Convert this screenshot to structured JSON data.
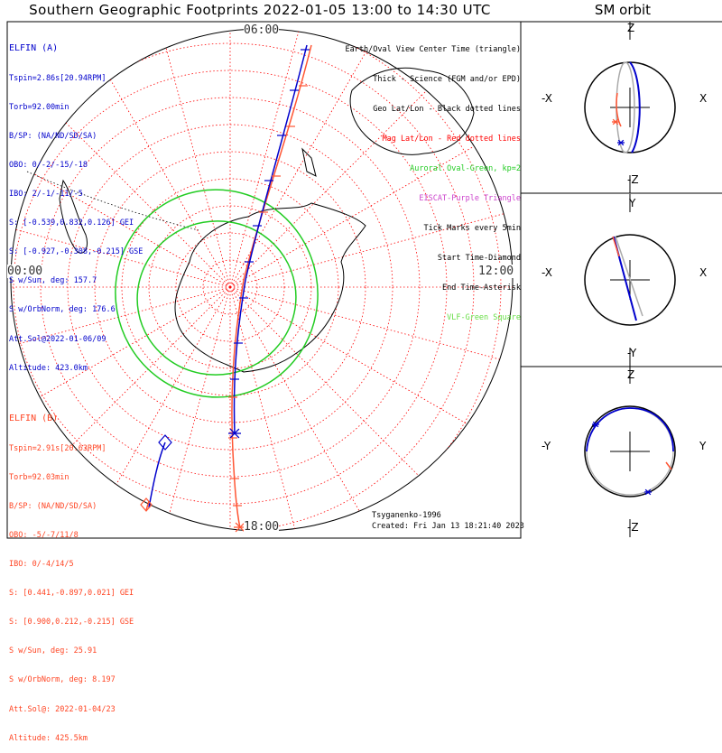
{
  "title": "Southern Geographic Footprints 2022-01-05 13:00 to 14:30 UTC",
  "sm_title": "SM orbit",
  "clock_labels": {
    "top": "06:00",
    "left": "00:00",
    "right": "12:00",
    "bottom": "18:00"
  },
  "legend": [
    {
      "text": "Earth/Oval View Center Time (triangle)",
      "color": "#000000"
    },
    {
      "text": "Thick - Science (FGM and/or EPD)",
      "color": "#000000"
    },
    {
      "text": "Geo Lat/Lon - Black dotted lines",
      "color": "#000000"
    },
    {
      "text": "Mag Lat/Lon - Red dotted lines",
      "color": "#ff0000"
    },
    {
      "text": "Auroral Oval-Green, kp=2",
      "color": "#22cc22"
    },
    {
      "text": "EISCAT-Purple Triangle",
      "color": "#cc44cc"
    },
    {
      "text": "Tick Marks every 5min",
      "color": "#000000"
    },
    {
      "text": "Start Time-Diamond",
      "color": "#000000"
    },
    {
      "text": "End Time-Asterisk",
      "color": "#000000"
    },
    {
      "text": "VLF-Green Square",
      "color": "#66dd44"
    }
  ],
  "elfin_a": {
    "header": "ELFIN (A)",
    "lines": [
      "Tspin=2.86s[20.94RPM]",
      "Torb=92.00min",
      "B/SP: (NA/ND/SD/SA)",
      "OBO: 0/-2/-15/-18",
      "IBO: 2/-1/-11/-5",
      "S: [-0.539,0.832,0.126] GEI",
      "S: [-0.927,-0.308,-0.215] GSE",
      "S w/Sun, deg: 157.7",
      "S w/OrbNorm, deg: 176.6",
      "Att.Sol@2022-01-06/09",
      "Altitude: 423.0km"
    ]
  },
  "elfin_b": {
    "header": "ELFIN (B)",
    "lines": [
      "Tspin=2.91s[20.63RPM]",
      "Torb=92.03min",
      "B/SP: (NA/ND/SD/SA)",
      "OBO: -5/-7/11/8",
      "IBO: 0/-4/14/5",
      "S: [0.441,-0.897,0.021] GEI",
      "S: [0.900,0.212,-0.215] GSE",
      "S w/Sun, deg: 25.91",
      "S w/OrbNorm, deg: 8.197",
      "Att.Sol@: 2022-01-04/23",
      "Altitude: 425.5km"
    ]
  },
  "credits": {
    "model": "Tsyganenko-1996",
    "created": "Created: Fri Jan 13 18:21:40 2023"
  },
  "sm_panels": [
    {
      "top": "Z",
      "bottom": "-Z",
      "left": "-X",
      "right": "X"
    },
    {
      "top": "Y",
      "bottom": "-Y",
      "left": "-X",
      "right": "X"
    },
    {
      "top": "Z",
      "bottom": "-Z",
      "left": "-Y",
      "right": "Y"
    }
  ],
  "colors": {
    "elfin_a": "#0000cc",
    "elfin_b": "#ff5533",
    "mag_grid": "#ff0000",
    "geo_grid": "#000000",
    "oval": "#22cc22",
    "sm_prev_orbit": "#aaaaaa"
  }
}
